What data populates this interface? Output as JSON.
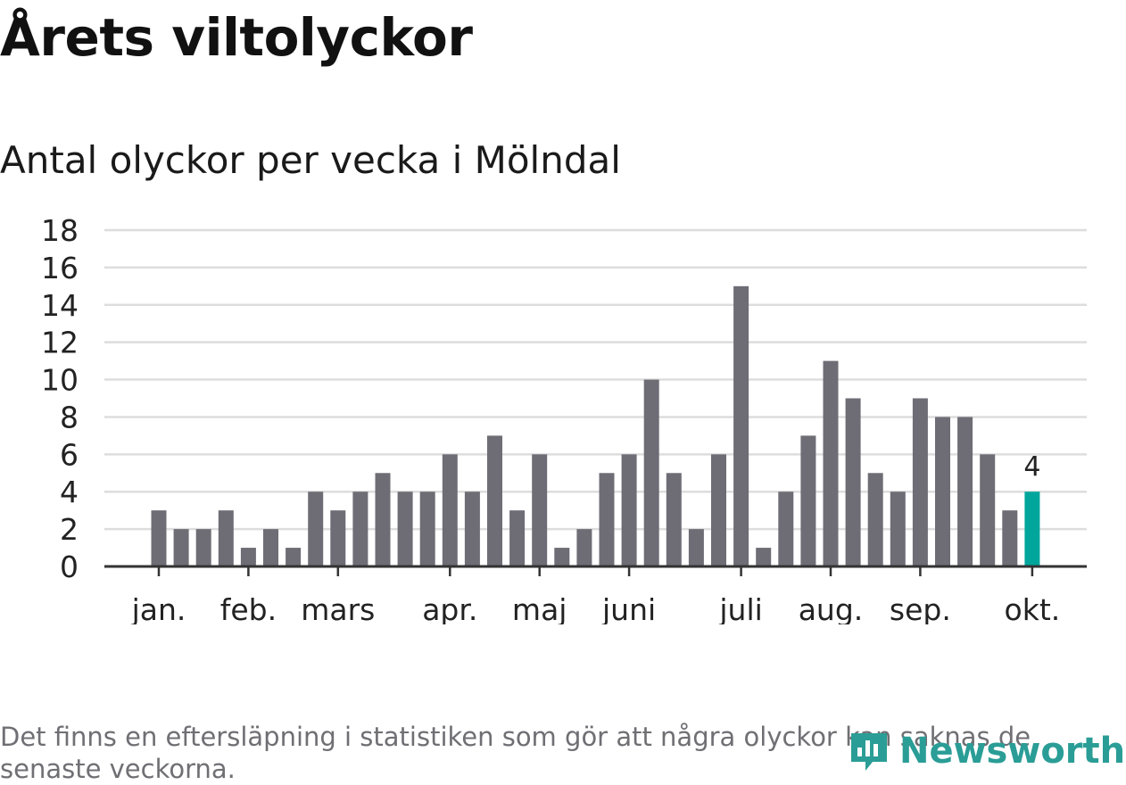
{
  "title": "Årets viltolyckor",
  "subtitle": "Antal olyckor per vecka i Mölndal",
  "note": "Det finns en eftersläpning i statistiken som gör att några olyckor kan saknas de senaste veckorna.",
  "brand": {
    "name": "Newsworthy",
    "icon": "newsworthy-logo-icon",
    "color": "#2a9d96"
  },
  "colors": {
    "bar": "#6e6d75",
    "highlight": "#00a69c",
    "grid": "#dddddd",
    "axis": "#333333"
  },
  "chart_data": {
    "type": "bar",
    "title": "Antal olyckor per vecka i Mölndal",
    "xlabel": "",
    "ylabel": "",
    "ylim": [
      0,
      18
    ],
    "yticks": [
      0,
      2,
      4,
      6,
      8,
      10,
      12,
      14,
      16,
      18
    ],
    "grid": true,
    "weeks": [
      1,
      2,
      3,
      4,
      5,
      6,
      7,
      8,
      9,
      10,
      11,
      12,
      13,
      14,
      15,
      16,
      17,
      18,
      19,
      20,
      21,
      22,
      23,
      24,
      25,
      26,
      27,
      28,
      29,
      30,
      31,
      32,
      33,
      34,
      35,
      36,
      37,
      38,
      39,
      40
    ],
    "values": [
      3,
      2,
      2,
      3,
      1,
      2,
      1,
      4,
      3,
      4,
      5,
      4,
      4,
      6,
      4,
      7,
      3,
      6,
      1,
      2,
      5,
      6,
      10,
      5,
      2,
      6,
      15,
      1,
      4,
      7,
      11,
      9,
      5,
      4,
      9,
      8,
      8,
      6,
      3,
      4
    ],
    "highlight_index": 39,
    "highlight_label": "4",
    "month_ticks": [
      {
        "label": "jan.",
        "week": 1
      },
      {
        "label": "feb.",
        "week": 5
      },
      {
        "label": "mars",
        "week": 9
      },
      {
        "label": "apr.",
        "week": 14
      },
      {
        "label": "maj",
        "week": 18
      },
      {
        "label": "juni",
        "week": 22
      },
      {
        "label": "juli",
        "week": 27
      },
      {
        "label": "aug.",
        "week": 31
      },
      {
        "label": "sep.",
        "week": 35
      },
      {
        "label": "okt.",
        "week": 40
      }
    ]
  }
}
